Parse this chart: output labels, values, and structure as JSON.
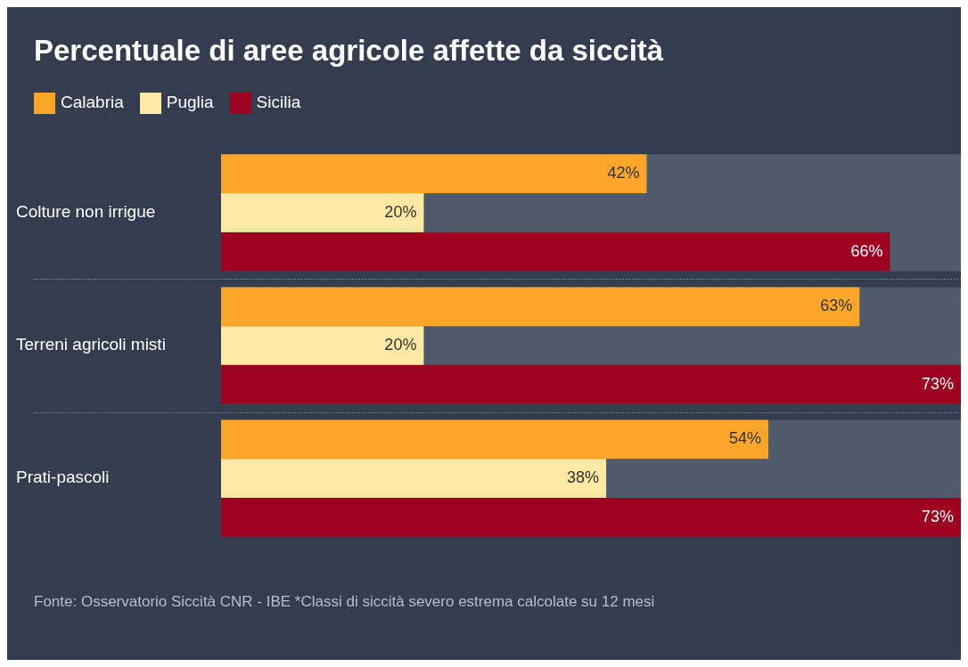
{
  "chart_data": {
    "type": "bar",
    "orientation": "horizontal",
    "title": "Percentuale di aree agricole affette da siccità",
    "categories": [
      "Colture non irrigue",
      "Terreni agricoli misti",
      "Prati-pascoli"
    ],
    "series": [
      {
        "name": "Calabria",
        "color": "#fba629",
        "values": [
          42,
          63,
          54
        ],
        "value_labels": [
          "42%",
          "63%",
          "54%"
        ]
      },
      {
        "name": "Puglia",
        "color": "#ffe8a3",
        "values": [
          20,
          20,
          38
        ],
        "value_labels": [
          "20%",
          "20%",
          "38%"
        ]
      },
      {
        "name": "Sicilia",
        "color": "#9e0020",
        "values": [
          66,
          73,
          73
        ],
        "value_labels": [
          "66%",
          "73%",
          "73%"
        ]
      }
    ],
    "bands": [
      {
        "axis": "y",
        "from": "Colture non irrigue",
        "to": "Colture non irrigue",
        "color": "#4f5a6a"
      },
      {
        "axis": "y",
        "from": "Terreni agricoli misti",
        "to": "Terreni agricoli misti",
        "color": "#4f5a6a"
      },
      {
        "axis": "y",
        "from": "Prati-pascoli",
        "to": "Prati-pascoli",
        "color": "#4f5a6a"
      }
    ],
    "tick_labels": "y",
    "grid": false,
    "legend": "top left",
    "annotations": [
      "Fonte: Osservatorio Siccità CNR - IBE *Classi di siccità severo estrema calcolate su 12 mesi"
    ]
  }
}
